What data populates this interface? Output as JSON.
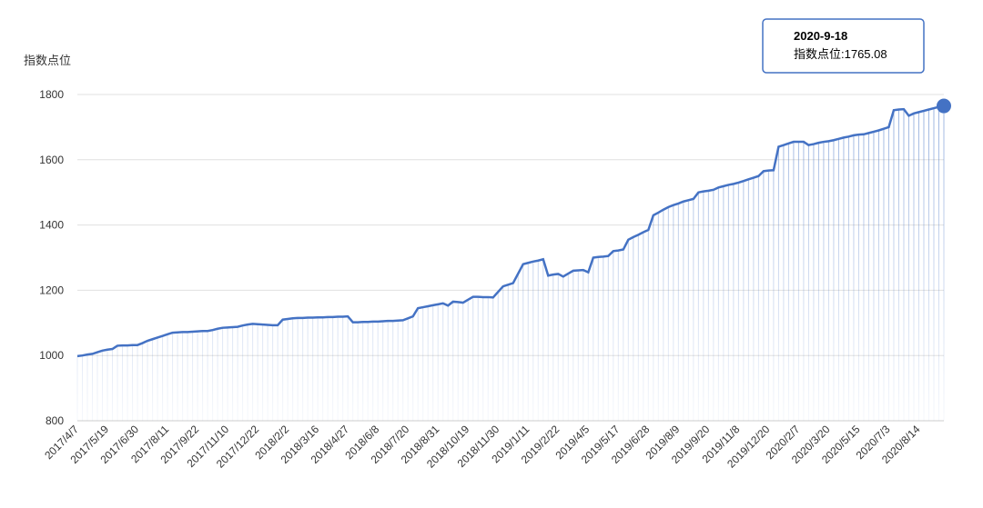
{
  "chart_data": {
    "type": "line",
    "y_label": "指数点位",
    "tooltip": {
      "title": "2020-9-18",
      "text": "指数点位:1765.08"
    },
    "categories": [
      "2017/4/7",
      null,
      null,
      null,
      null,
      null,
      "2017/5/19",
      null,
      null,
      null,
      null,
      null,
      "2017/6/30",
      null,
      null,
      null,
      null,
      null,
      "2017/8/11",
      null,
      null,
      null,
      null,
      null,
      "2017/9/22",
      null,
      null,
      null,
      null,
      null,
      "2017/11/10",
      null,
      null,
      null,
      null,
      null,
      "2017/12/22",
      null,
      null,
      null,
      null,
      null,
      "2018/2/2",
      null,
      null,
      null,
      null,
      null,
      "2018/3/16",
      null,
      null,
      null,
      null,
      null,
      "2018/4/27",
      null,
      null,
      null,
      null,
      null,
      "2018/6/8",
      null,
      null,
      null,
      null,
      null,
      "2018/7/20",
      null,
      null,
      null,
      null,
      null,
      "2018/8/31",
      null,
      null,
      null,
      null,
      null,
      "2018/10/19",
      null,
      null,
      null,
      null,
      null,
      "2018/11/30",
      null,
      null,
      null,
      null,
      null,
      "2019/1/11",
      null,
      null,
      null,
      null,
      null,
      "2019/2/22",
      null,
      null,
      null,
      null,
      null,
      "2019/4/5",
      null,
      null,
      null,
      null,
      null,
      "2019/5/17",
      null,
      null,
      null,
      null,
      null,
      "2019/6/28",
      null,
      null,
      null,
      null,
      null,
      "2019/8/9",
      null,
      null,
      null,
      null,
      null,
      "2019/9/20",
      null,
      null,
      null,
      null,
      null,
      "2019/11/8",
      null,
      null,
      null,
      null,
      null,
      "2019/12/20",
      null,
      null,
      null,
      null,
      null,
      "2020/2/7",
      null,
      null,
      null,
      null,
      null,
      "2020/3/20",
      null,
      null,
      null,
      null,
      null,
      "2020/5/15",
      null,
      null,
      null,
      null,
      null,
      "2020/7/3",
      null,
      null,
      null,
      null,
      null,
      "2020/8/14",
      null,
      null,
      null,
      null,
      null
    ],
    "series": [
      {
        "name": "指数点位",
        "color": "#4472c4",
        "values": [
          998,
          1000,
          1003,
          1005,
          1010,
          1015,
          1018,
          1020,
          1030,
          1031,
          1031,
          1032,
          1032,
          1038,
          1045,
          1050,
          1055,
          1060,
          1065,
          1070,
          1071,
          1072,
          1072,
          1073,
          1074,
          1075,
          1075,
          1078,
          1082,
          1085,
          1086,
          1087,
          1088,
          1092,
          1095,
          1097,
          1096,
          1095,
          1094,
          1093,
          1093,
          1110,
          1112,
          1114,
          1115,
          1115,
          1116,
          1116,
          1117,
          1117,
          1118,
          1118,
          1119,
          1119,
          1120,
          1102,
          1102,
          1103,
          1103,
          1104,
          1104,
          1105,
          1106,
          1106,
          1107,
          1108,
          1114,
          1120,
          1145,
          1148,
          1151,
          1154,
          1157,
          1160,
          1153,
          1165,
          1164,
          1162,
          1171,
          1180,
          1180,
          1179,
          1179,
          1178,
          1195,
          1212,
          1217,
          1222,
          1251,
          1280,
          1284,
          1288,
          1291,
          1295,
          1245,
          1248,
          1250,
          1242,
          1251,
          1260,
          1261,
          1262,
          1255,
          1300,
          1302,
          1303,
          1305,
          1320,
          1322,
          1325,
          1355,
          1363,
          1370,
          1378,
          1385,
          1430,
          1438,
          1447,
          1455,
          1461,
          1466,
          1472,
          1476,
          1480,
          1500,
          1503,
          1505,
          1508,
          1515,
          1519,
          1523,
          1526,
          1530,
          1535,
          1540,
          1545,
          1550,
          1565,
          1567,
          1568,
          1640,
          1645,
          1650,
          1655,
          1655,
          1655,
          1645,
          1648,
          1652,
          1655,
          1657,
          1660,
          1664,
          1668,
          1671,
          1675,
          1677,
          1678,
          1682,
          1686,
          1690,
          1695,
          1700,
          1752,
          1754,
          1755,
          1735,
          1742,
          1746,
          1750,
          1754,
          1758,
          1762,
          1765.08
        ]
      }
    ],
    "ylim": [
      800,
      1800
    ],
    "yticks": [
      800,
      1000,
      1200,
      1400,
      1600,
      1800
    ],
    "grid": true
  }
}
